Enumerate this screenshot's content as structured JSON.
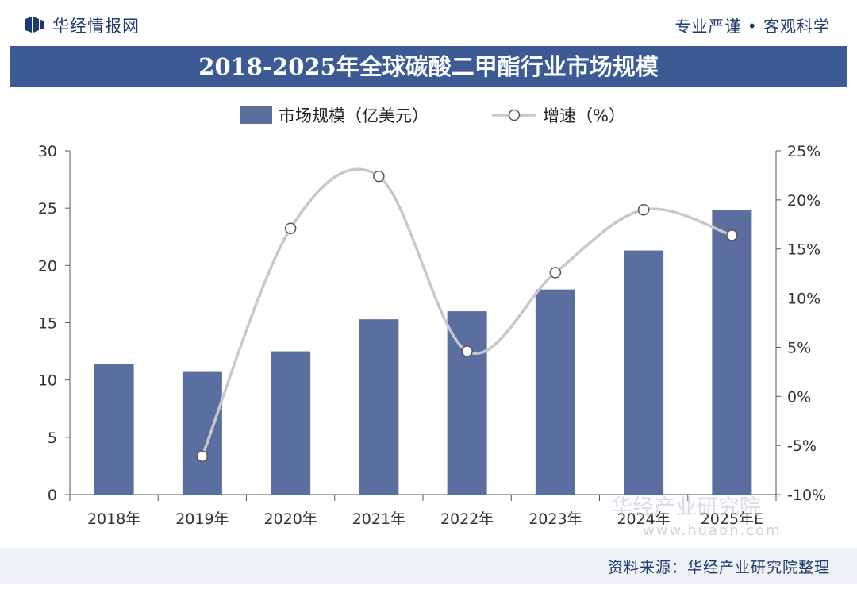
{
  "header": {
    "brand": "华经情报网",
    "slogan": "专业严谨 • 客观科学"
  },
  "title": "2018-2025年全球碳酸二甲酯行业市场规模",
  "footer": {
    "source": "资料来源：华经产业研究院整理",
    "watermark_url": "www.huaon.com",
    "watermark_name": "华经产业研究院"
  },
  "colors": {
    "bar": "#5a6f9f",
    "line": "#c6c8cc",
    "title_bg": "#3c5a94",
    "brand": "#1f3a6e"
  },
  "chart_data": {
    "type": "bar",
    "categories": [
      "2018年",
      "2019年",
      "2020年",
      "2021年",
      "2022年",
      "2023年",
      "2024年",
      "2025年E"
    ],
    "series": [
      {
        "name": "市场规模（亿美元）",
        "type": "bar",
        "axis": "left",
        "values": [
          11.4,
          10.7,
          12.5,
          15.3,
          16.0,
          17.9,
          21.3,
          24.8
        ]
      },
      {
        "name": "增速（%）",
        "type": "line",
        "axis": "right",
        "values": [
          null,
          -6.1,
          17.1,
          22.4,
          4.6,
          12.6,
          19.0,
          16.4
        ]
      }
    ],
    "y_left": {
      "ylim": [
        0,
        30
      ],
      "ticks": [
        "0",
        "5",
        "10",
        "15",
        "20",
        "25",
        "30"
      ]
    },
    "y_right": {
      "ylim": [
        -10,
        25
      ],
      "ticks": [
        "-10%",
        "-5%",
        "0%",
        "5%",
        "10%",
        "15%",
        "20%",
        "25%"
      ]
    },
    "legend": "top-center",
    "grid": false
  }
}
